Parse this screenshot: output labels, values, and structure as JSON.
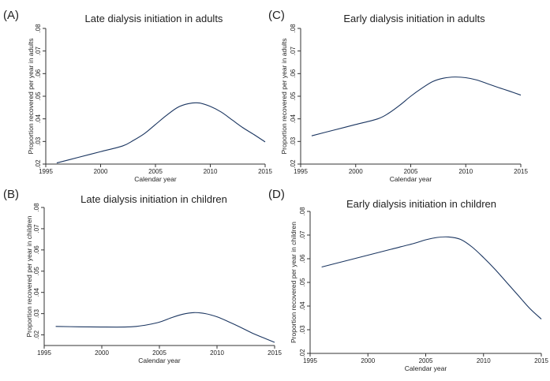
{
  "chart_data": [
    {
      "type": "line",
      "panel": "(A)",
      "title": "Late dialysis initiation in adults",
      "xlabel": "Calendar year",
      "ylabel": "Proportion recovered per year in adults",
      "xlim": [
        1995,
        2015
      ],
      "ylim": [
        0.02,
        0.08
      ],
      "xticks": [
        "1995",
        "2000",
        "2005",
        "2010",
        "2015"
      ],
      "yticks": [
        ".02",
        ".03",
        ".04",
        ".05",
        ".06",
        ".07",
        ".08"
      ],
      "grid": false,
      "series": [
        {
          "x": [
            1996,
            1998,
            2000,
            2002,
            2003,
            2004,
            2005,
            2006,
            2007,
            2008,
            2009,
            2010,
            2011,
            2012,
            2013,
            2014,
            2015
          ],
          "y": [
            0.0205,
            0.023,
            0.0255,
            0.028,
            0.0305,
            0.0335,
            0.0375,
            0.0415,
            0.045,
            0.0467,
            0.047,
            0.0455,
            0.043,
            0.0395,
            0.036,
            0.033,
            0.0298
          ]
        }
      ]
    },
    {
      "type": "line",
      "panel": "(C)",
      "title": "Early dialysis initiation in adults",
      "xlabel": "Calendar year",
      "ylabel": "Proportion recovered per year in adults",
      "xlim": [
        1995,
        2015
      ],
      "ylim": [
        0.02,
        0.08
      ],
      "xticks": [
        "1995",
        "2000",
        "2005",
        "2010",
        "2015"
      ],
      "yticks": [
        ".02",
        ".03",
        ".04",
        ".05",
        ".06",
        ".07",
        ".08"
      ],
      "grid": false,
      "series": [
        {
          "x": [
            1996,
            1998,
            2000,
            2002,
            2003,
            2004,
            2005,
            2006,
            2007,
            2008,
            2009,
            2010,
            2011,
            2012,
            2013,
            2014,
            2015
          ],
          "y": [
            0.0325,
            0.035,
            0.0375,
            0.04,
            0.0425,
            0.046,
            0.05,
            0.0535,
            0.0565,
            0.058,
            0.0585,
            0.0582,
            0.0572,
            0.0555,
            0.0538,
            0.0522,
            0.0505
          ]
        }
      ]
    },
    {
      "type": "line",
      "panel": "(B)",
      "title": "Late dialysis initiation in children",
      "xlabel": "Calendar year",
      "ylabel": "Proportion recovered per year in children",
      "xlim": [
        1995,
        2015
      ],
      "ylim": [
        0.015,
        0.08
      ],
      "xticks": [
        "1995",
        "2000",
        "2005",
        "2010",
        "2015"
      ],
      "yticks": [
        ".02",
        ".03",
        ".04",
        ".05",
        ".06",
        ".07",
        ".08"
      ],
      "grid": false,
      "series": [
        {
          "x": [
            1996,
            1998,
            2000,
            2002,
            2003,
            2004,
            2005,
            2006,
            2007,
            2008,
            2009,
            2010,
            2011,
            2012,
            2013,
            2014,
            2015
          ],
          "y": [
            0.024,
            0.0238,
            0.0237,
            0.0237,
            0.024,
            0.0248,
            0.026,
            0.028,
            0.0297,
            0.0305,
            0.03,
            0.0285,
            0.0262,
            0.0237,
            0.021,
            0.0187,
            0.0165
          ]
        }
      ]
    },
    {
      "type": "line",
      "panel": "(D)",
      "title": "Early dialysis initiation in children",
      "xlabel": "Calendar year",
      "ylabel": "Proportion recovered per year in children",
      "xlim": [
        1995,
        2015
      ],
      "ylim": [
        0.02,
        0.08
      ],
      "xticks": [
        "1995",
        "2000",
        "2005",
        "2010",
        "2015"
      ],
      "yticks": [
        ".02",
        ".03",
        ".04",
        ".05",
        ".06",
        ".07",
        ".08"
      ],
      "grid": false,
      "series": [
        {
          "x": [
            1996,
            1998,
            2000,
            2002,
            2004,
            2005,
            2006,
            2007,
            2008,
            2009,
            2010,
            2011,
            2012,
            2013,
            2014,
            2015
          ],
          "y": [
            0.0565,
            0.059,
            0.0615,
            0.064,
            0.0665,
            0.068,
            0.069,
            0.0692,
            0.0682,
            0.065,
            0.0605,
            0.0555,
            0.05,
            0.0445,
            0.039,
            0.0345
          ]
        }
      ]
    }
  ]
}
